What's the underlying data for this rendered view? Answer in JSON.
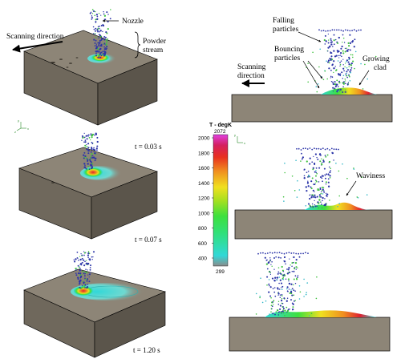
{
  "left_panel": {
    "labels": {
      "nozzle": "Nozzle",
      "powder_stream_line1": "Powder",
      "powder_stream_line2": "stream",
      "scanning_direction": "Scanning direction"
    },
    "times": [
      "t = 0.03 s",
      "t = 0.07 s",
      "t = 1.20 s"
    ]
  },
  "colorbar": {
    "title": "T - degK",
    "max": "2072",
    "min": "299",
    "ticks": [
      "2000",
      "1800",
      "1600",
      "1400",
      "1200",
      "1000",
      "800",
      "600",
      "400"
    ],
    "stops": [
      "#8c8c8c",
      "#31d8d8",
      "#31e07a",
      "#3ee03e",
      "#a8e020",
      "#f0e020",
      "#f09020",
      "#e83020",
      "#d42060",
      "#e040e0"
    ]
  },
  "right_panel": {
    "labels": {
      "falling_line1": "Falling",
      "falling_line2": "particles",
      "bouncing_line1": "Bouncing",
      "bouncing_line2": "particles",
      "growing_line1": "Growing",
      "growing_line2": "clad",
      "scanning_line1": "Scanning",
      "scanning_line2": "direction",
      "waviness": "Waviness"
    }
  },
  "colors": {
    "block_top": "#8d8577",
    "block_front": "#6f685c",
    "block_side": "#5b554b",
    "particle_blue": "#2c35a8",
    "particle_green": "#3fc23f"
  }
}
